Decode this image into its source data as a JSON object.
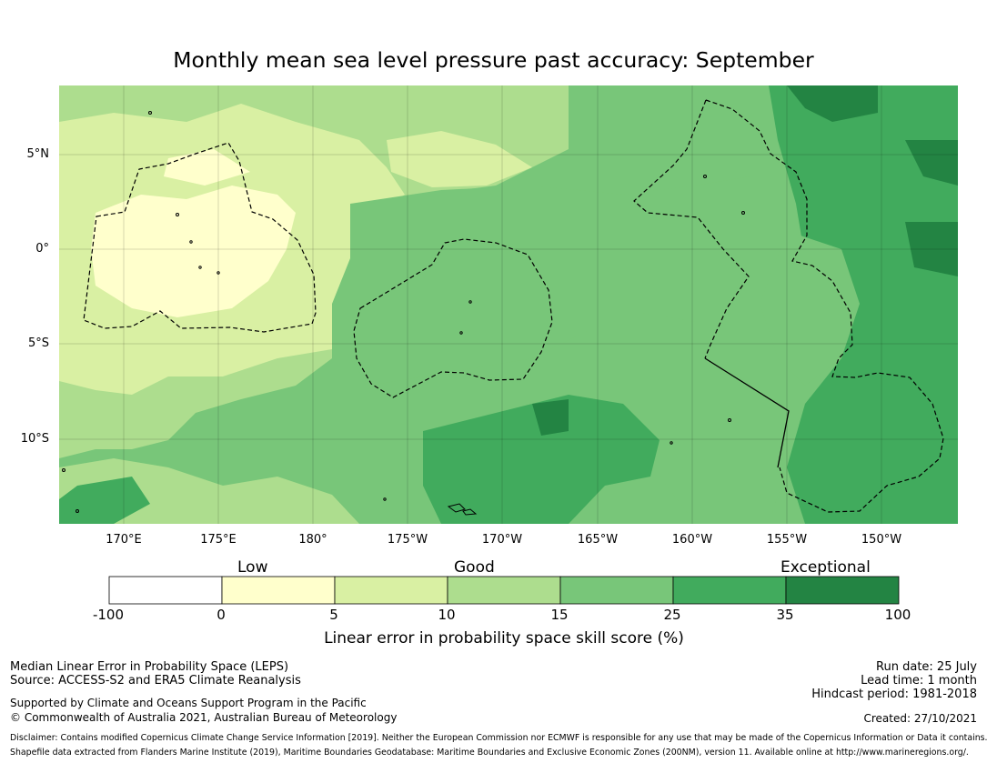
{
  "title": "Monthly mean sea level pressure past accuracy: September",
  "map": {
    "lat_labels": [
      "5°N",
      "0°",
      "5°S",
      "10°S"
    ],
    "lon_labels": [
      "170°E",
      "175°E",
      "180°",
      "175°W",
      "170°W",
      "165°W",
      "160°W",
      "155°W",
      "150°W"
    ]
  },
  "colorbar": {
    "categories": [
      "Low",
      "Good",
      "Exceptional"
    ],
    "ticks": [
      "-100",
      "0",
      "5",
      "10",
      "15",
      "25",
      "35",
      "100"
    ],
    "colors": [
      "#ffffff",
      "#ffffcc",
      "#d9f0a3",
      "#addd8e",
      "#78c679",
      "#41ab5d",
      "#238443"
    ],
    "label": "Linear error in probability space skill score (%)"
  },
  "footer": {
    "left_line1": "Median Linear Error in Probability Space (LEPS)",
    "left_line2": "Source: ACCESS-S2 and ERA5 Climate Reanalysis",
    "left_line3": "Supported by Climate and Oceans Support Program in the Pacific",
    "left_line4": "© Commonwealth of Australia 2021, Australian Bureau of Meteorology",
    "right_line1": "Run date: 25 July",
    "right_line2": "Lead time: 1 month",
    "right_line3": "Hindcast period: 1981-2018",
    "created": "Created: 27/10/2021",
    "disclaimer": "Disclaimer: Contains modified Copernicus Climate Change Service Information [2019]. Neither the European Commission nor ECMWF is responsible for any use that may be made of the Copernicus Information or Data it contains.",
    "shapefile": "Shapefile data extracted from Flanders Marine Institute (2019), Maritime Boundaries Geodatabase: Maritime Boundaries and Exclusive Economic Zones (200NM), version 11. Available online at http://www.marineregions.org/."
  }
}
